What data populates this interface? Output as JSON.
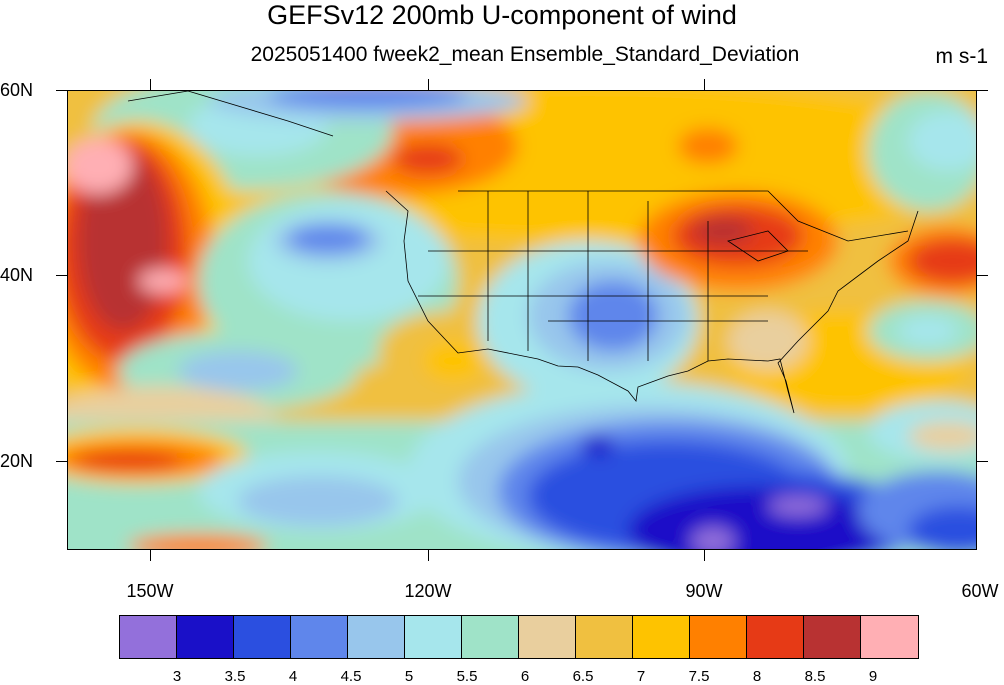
{
  "title": "GEFSv12 200mb U-component of wind",
  "subtitle": "2025051400 fweek2_mean Ensemble_Standard_Deviation",
  "units": "m s-1",
  "lat_labels": [
    "60N",
    "40N",
    "20N"
  ],
  "lon_labels": [
    "150W",
    "120W",
    "90W",
    "60W"
  ],
  "colorbar": {
    "colors": [
      "#9370db",
      "#1a10c8",
      "#2b4fe0",
      "#5f86eb",
      "#98c6ec",
      "#a6e6ec",
      "#9fe3c8",
      "#e9cf9e",
      "#f0c040",
      "#fec300",
      "#ff8000",
      "#e63a16",
      "#b83232",
      "#ffafb4"
    ],
    "labels": [
      "3",
      "3.5",
      "4",
      "4.5",
      "5",
      "5.5",
      "6",
      "6.5",
      "7",
      "7.5",
      "8",
      "8.5",
      "9"
    ]
  }
}
